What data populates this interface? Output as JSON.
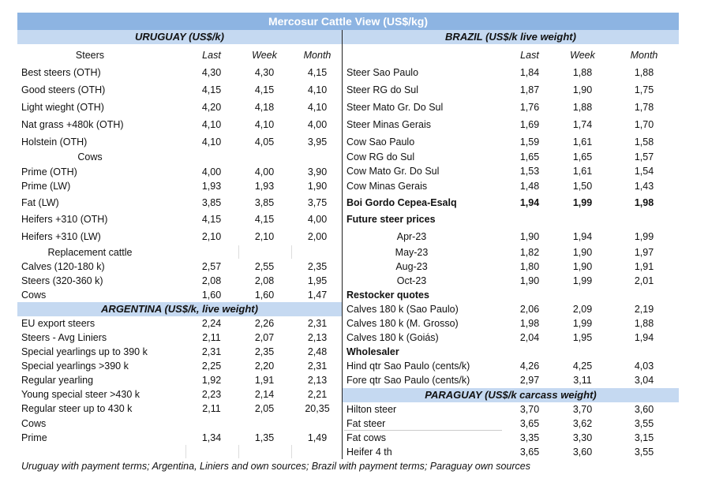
{
  "title": "Mercosur Cattle View (US$/kg)",
  "columns": [
    "Last",
    "Week",
    "Month"
  ],
  "uruguay": {
    "header": "URUGUAY (US$/k)",
    "rows": [
      {
        "label": "Steers",
        "type": "subhead",
        "cols": true
      },
      {
        "label": "Best steers (OTH)",
        "values": [
          "4,30",
          "4,30",
          "4,15"
        ]
      },
      {
        "label": "Good steers (OTH)",
        "values": [
          "4,15",
          "4,15",
          "4,10"
        ]
      },
      {
        "label": "Light wieght (OTH)",
        "values": [
          "4,20",
          "4,18",
          "4,10"
        ]
      },
      {
        "label": "Nat grass +480k (OTH)",
        "values": [
          "4,10",
          "4,10",
          "4,00"
        ]
      },
      {
        "label": "Holstein (OTH)",
        "values": [
          "4,10",
          "4,05",
          "3,95"
        ]
      },
      {
        "label": "Cows",
        "type": "subhead"
      },
      {
        "label": "Prime (OTH)",
        "values": [
          "4,00",
          "4,00",
          "3,90"
        ]
      },
      {
        "label": "Prime (LW)",
        "values": [
          "1,93",
          "1,93",
          "1,90"
        ]
      },
      {
        "label": "Fat (LW)",
        "values": [
          "3,85",
          "3,85",
          "3,75"
        ]
      },
      {
        "label": "Heifers +310 (OTH)",
        "values": [
          "4,15",
          "4,15",
          "4,00"
        ]
      },
      {
        "label": "Heifers +310 (LW)",
        "values": [
          "2,10",
          "2,10",
          "2,00"
        ]
      },
      {
        "label": "Replacement cattle",
        "type": "subhead"
      },
      {
        "label": "Calves (120-180 k)",
        "values": [
          "2,57",
          "2,55",
          "2,35"
        ]
      },
      {
        "label": "Steers (320-360 k)",
        "values": [
          "2,08",
          "2,08",
          "1,95"
        ]
      },
      {
        "label": "Cows",
        "values": [
          "1,60",
          "1,60",
          "1,47"
        ]
      }
    ]
  },
  "argentina": {
    "header": "ARGENTINA (US$/k, live weight)",
    "rows": [
      {
        "label": "EU export steers",
        "values": [
          "2,24",
          "2,26",
          "2,31"
        ]
      },
      {
        "label": "Steers - Avg Liniers",
        "values": [
          "2,11",
          "2,07",
          "2,13"
        ]
      },
      {
        "label": "Special yearlings up to 390 k",
        "values": [
          "2,31",
          "2,35",
          "2,48"
        ]
      },
      {
        "label": "Special yearlings >390 k",
        "values": [
          "2,25",
          "2,20",
          "2,31"
        ]
      },
      {
        "label": "Regular yearling",
        "values": [
          "1,92",
          "1,91",
          "2,13"
        ]
      },
      {
        "label": "Young special steer >430 k",
        "values": [
          "2,23",
          "2,14",
          "2,21"
        ]
      },
      {
        "label": "Regular steer up to 430 k",
        "values": [
          "2,11",
          "2,05",
          "20,35"
        ]
      },
      {
        "label": "Cows"
      },
      {
        "label": "Prime",
        "values": [
          "1,34",
          "1,35",
          "1,49"
        ]
      }
    ]
  },
  "brazil": {
    "header": "BRAZIL  (US$/k live weight)",
    "rows": [
      {
        "label": "",
        "cols": true
      },
      {
        "label": "Steer Sao Paulo",
        "values": [
          "1,84",
          "1,88",
          "1,88"
        ]
      },
      {
        "label": "Steer RG do Sul",
        "values": [
          "1,87",
          "1,90",
          "1,75"
        ]
      },
      {
        "label": "Steer Mato Gr. Do Sul",
        "values": [
          "1,76",
          "1,88",
          "1,78"
        ]
      },
      {
        "label": "Steer Minas Gerais",
        "values": [
          "1,69",
          "1,74",
          "1,70"
        ]
      },
      {
        "label": "Cow Sao Paulo",
        "values": [
          "1,59",
          "1,61",
          "1,58"
        ]
      },
      {
        "label": "Cow RG do Sul",
        "values": [
          "1,65",
          "1,65",
          "1,57"
        ]
      },
      {
        "label": "Cow Mato Gr. Do Sul",
        "values": [
          "1,53",
          "1,61",
          "1,54"
        ]
      },
      {
        "label": "Cow Minas Gerais",
        "values": [
          "1,48",
          "1,50",
          "1,43"
        ]
      },
      {
        "label": "Boi Gordo Cepea-Esalq",
        "values": [
          "1,94",
          "1,99",
          "1,98"
        ],
        "type": "bold"
      },
      {
        "label": "Future steer prices",
        "type": "section"
      },
      {
        "label": "Apr-23",
        "values": [
          "1,90",
          "1,94",
          "1,99"
        ],
        "type": "centered"
      },
      {
        "label": "May-23",
        "values": [
          "1,82",
          "1,90",
          "1,97"
        ],
        "type": "centered"
      },
      {
        "label": "Aug-23",
        "values": [
          "1,80",
          "1,90",
          "1,91"
        ],
        "type": "centered"
      },
      {
        "label": "Oct-23",
        "values": [
          "1,90",
          "1,99",
          "2,01"
        ],
        "type": "centered"
      },
      {
        "label": "Restocker quotes",
        "type": "section"
      },
      {
        "label": "Calves 180 k (Sao Paulo)",
        "values": [
          "2,06",
          "2,09",
          "2,19"
        ]
      },
      {
        "label": "Calves 180 k (M. Grosso)",
        "values": [
          "1,98",
          "1,99",
          "1,88"
        ]
      },
      {
        "label": "Calves 180 k (Goiás)",
        "values": [
          "2,04",
          "1,95",
          "1,94"
        ]
      },
      {
        "label": "Wholesaler",
        "type": "section"
      },
      {
        "label": "Hind qtr Sao Paulo (cents/k)",
        "values": [
          "4,26",
          "4,25",
          "4,03"
        ]
      },
      {
        "label": "Fore qtr Sao Paulo (cents/k)",
        "values": [
          "2,97",
          "3,11",
          "3,04"
        ]
      }
    ]
  },
  "paraguay": {
    "header": "PARAGUAY  (US$/k carcass weight)",
    "rows": [
      {
        "label": "Hilton steer",
        "values": [
          "3,70",
          "3,70",
          "3,60"
        ]
      },
      {
        "label": "Fat steer",
        "values": [
          "3,65",
          "3,62",
          "3,55"
        ]
      },
      {
        "label": "Fat cows",
        "values": [
          "3,35",
          "3,30",
          "3,15"
        ]
      },
      {
        "label": "Heifer 4 th",
        "values": [
          "3,65",
          "3,60",
          "3,55"
        ]
      }
    ]
  },
  "footer": "Uruguay with payment terms; Argentina, Liniers and own sources; Brazil with payment terms; Paraguay own sources",
  "colors": {
    "title_bar": "#8db4e2",
    "section_band": "#c5d9f1"
  }
}
